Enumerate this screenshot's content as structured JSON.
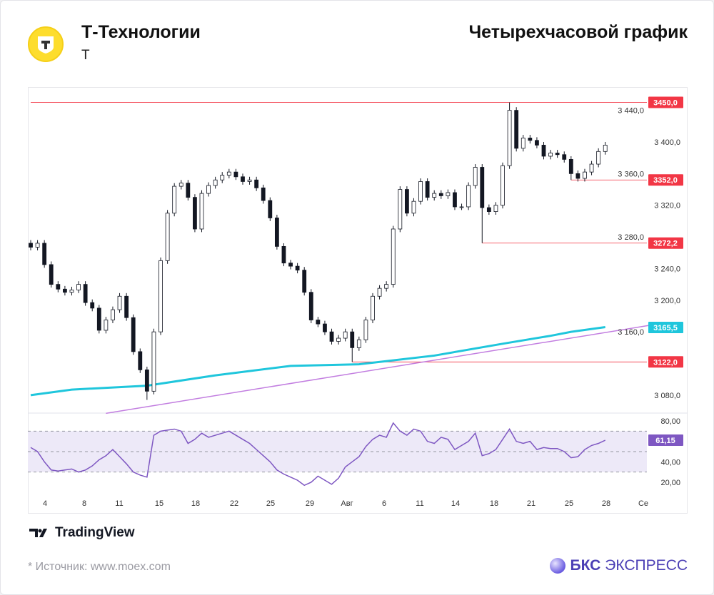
{
  "header": {
    "company": "Т-Технологии",
    "ticker": "T",
    "chart_title": "Четырехчасовой график",
    "logo_letter": "T"
  },
  "footer": {
    "tradingview": "TradingView",
    "source": "* Источник: www.moex.com",
    "brand_bold": "БКС",
    "brand_rest": "ЭКСПРЕСС"
  },
  "chart_data": [
    {
      "type": "candlestick",
      "ylim": [
        3060,
        3468
      ],
      "grid": false,
      "price_ticks": [
        "3 440,0",
        "3 400,0",
        "3 360,0",
        "3 320,0",
        "3 280,0",
        "3 240,0",
        "3 200,0",
        "3 160,0",
        "3 080,0"
      ],
      "price_tick_values": [
        3440,
        3400,
        3360,
        3320,
        3280,
        3240,
        3200,
        3160,
        3080
      ],
      "x_tick_labels": [
        "4",
        "8",
        "11",
        "15",
        "18",
        "22",
        "25",
        "29",
        "Авг",
        "6",
        "11",
        "14",
        "18",
        "21",
        "25",
        "28",
        "Се"
      ],
      "closes": [
        3267,
        3272,
        3245,
        3220,
        3214,
        3210,
        3213,
        3220,
        3197,
        3190,
        3162,
        3175,
        3188,
        3205,
        3178,
        3135,
        3112,
        3085,
        3160,
        3250,
        3310,
        3344,
        3348,
        3330,
        3290,
        3335,
        3345,
        3352,
        3358,
        3362,
        3356,
        3350,
        3352,
        3342,
        3326,
        3304,
        3268,
        3247,
        3243,
        3238,
        3210,
        3175,
        3170,
        3160,
        3148,
        3152,
        3160,
        3140,
        3150,
        3175,
        3205,
        3215,
        3220,
        3290,
        3340,
        3310,
        3325,
        3350,
        3330,
        3335,
        3332,
        3336,
        3318,
        3318,
        3345,
        3368,
        3317,
        3312,
        3320,
        3370,
        3440,
        3392,
        3405,
        3402,
        3396,
        3382,
        3386,
        3384,
        3378,
        3360,
        3354,
        3362,
        3372,
        3388,
        3396
      ],
      "extremes": [
        {
          "i": 17,
          "low": 3074
        },
        {
          "i": 47,
          "low": 3122
        },
        {
          "i": 66,
          "low": 3272.2
        },
        {
          "i": 70,
          "high": 3450
        },
        {
          "i": 79,
          "low": 3352
        }
      ],
      "moving_average": [
        [
          0,
          3080
        ],
        [
          6,
          3087
        ],
        [
          17,
          3092
        ],
        [
          27,
          3105
        ],
        [
          38,
          3117
        ],
        [
          48,
          3119
        ],
        [
          59,
          3130
        ],
        [
          69,
          3145
        ],
        [
          76,
          3155
        ],
        [
          79,
          3160
        ],
        [
          84,
          3166
        ]
      ],
      "trendline": [
        [
          11,
          3057
        ],
        [
          90.3,
          3168
        ]
      ],
      "levels": [
        {
          "value": 3450,
          "label": "3450,0",
          "from": 0
        },
        {
          "value": 3352,
          "label": "3352,0",
          "from": 79
        },
        {
          "value": 3272.2,
          "label": "3272,2",
          "from": 66
        },
        {
          "value": 3122,
          "label": "3122,0",
          "from": 47
        }
      ],
      "ma_label": "3165,5",
      "ma_value": 3165.5,
      "colors": {
        "candle": "#131722",
        "level": "#f23645",
        "ma": "#1fc6dc",
        "trend": "#c27ee0"
      }
    },
    {
      "type": "line",
      "name": "RSI",
      "ylim": [
        8,
        92
      ],
      "band": [
        30,
        70
      ],
      "mid": 50,
      "ticks": [
        "80,00",
        "40,00",
        "20,00"
      ],
      "tick_values": [
        80,
        40,
        20
      ],
      "values": [
        54,
        50,
        40,
        32,
        31,
        32,
        33,
        30,
        32,
        36,
        42,
        46,
        52,
        45,
        38,
        30,
        27,
        25,
        66,
        70,
        71,
        72,
        70,
        58,
        62,
        68,
        64,
        66,
        68,
        70,
        66,
        62,
        58,
        52,
        46,
        40,
        32,
        28,
        25,
        22,
        17,
        20,
        26,
        22,
        18,
        24,
        35,
        40,
        45,
        55,
        62,
        66,
        64,
        78,
        70,
        66,
        72,
        70,
        60,
        58,
        64,
        62,
        52,
        56,
        60,
        68,
        46,
        48,
        52,
        62,
        72,
        60,
        58,
        60,
        52,
        54,
        53,
        53,
        50,
        44,
        45,
        52,
        56,
        58,
        61.15
      ],
      "last_label": "61,15",
      "colors": {
        "line": "#7e57c2",
        "band": "#ede9f8"
      }
    }
  ]
}
